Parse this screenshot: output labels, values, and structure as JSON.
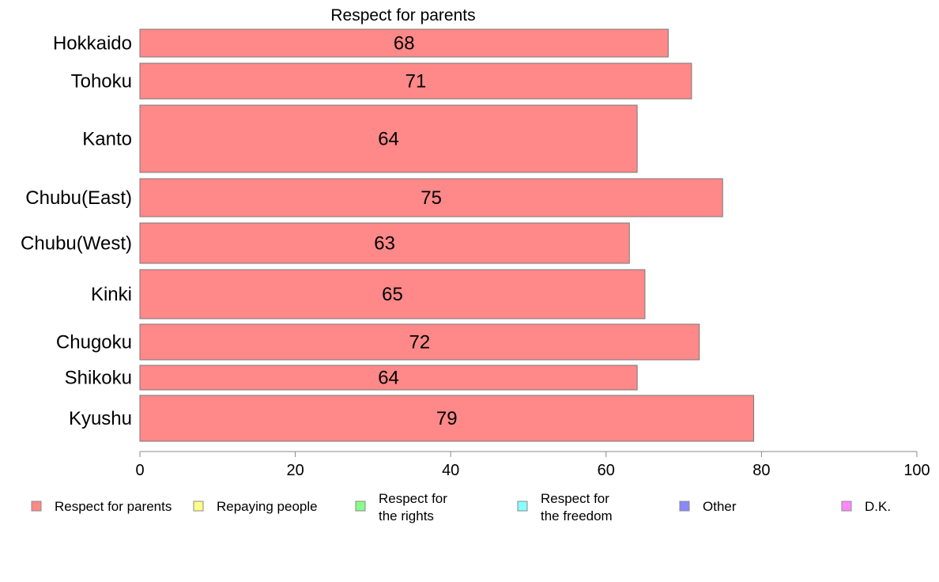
{
  "chart_data": {
    "type": "bar",
    "orientation": "horizontal",
    "title": "Respect for parents",
    "categories": [
      "Hokkaido",
      "Tohoku",
      "Kanto",
      "Chubu(East)",
      "Chubu(West)",
      "Kinki",
      "Chugoku",
      "Shikoku",
      "Kyushu"
    ],
    "values": [
      68,
      71,
      64,
      75,
      63,
      65,
      72,
      64,
      79
    ],
    "value_labels": [
      "68",
      "71",
      "64",
      "75",
      "63",
      "65",
      "72",
      "64",
      "79"
    ],
    "xlim": [
      0,
      100
    ],
    "xticks": [
      "0",
      "20",
      "40",
      "60",
      "80",
      "100"
    ],
    "xlabel": "",
    "ylabel": "",
    "grid": false,
    "legend_position": "bottom",
    "bar_color": "#ff8888",
    "legend": [
      {
        "lines": [
          "Respect for parents"
        ],
        "color": "#ff8888"
      },
      {
        "lines": [
          "Repaying people"
        ],
        "color": "#ffff88"
      },
      {
        "lines": [
          "Respect for",
          "the rights"
        ],
        "color": "#88ff88"
      },
      {
        "lines": [
          "Respect for",
          "the freedom"
        ],
        "color": "#88ffff"
      },
      {
        "lines": [
          "Other"
        ],
        "color": "#8888ff"
      },
      {
        "lines": [
          "D.K."
        ],
        "color": "#ff88ff"
      }
    ]
  }
}
